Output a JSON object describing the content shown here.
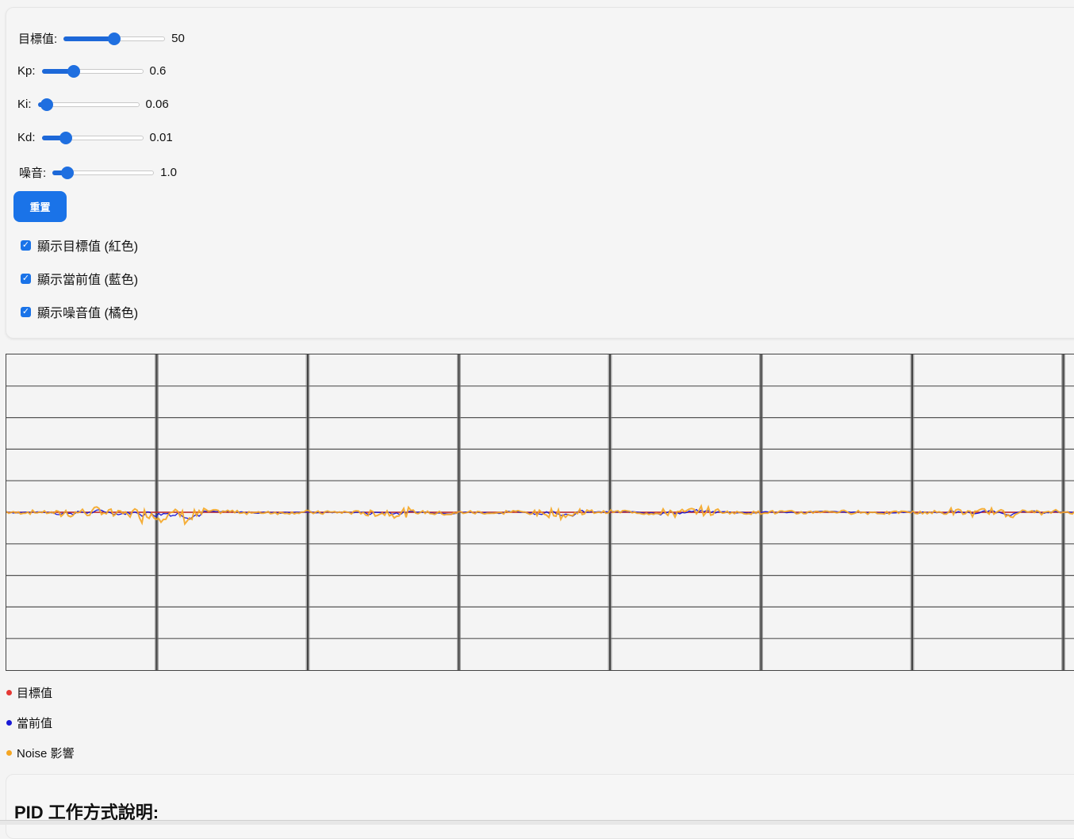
{
  "controls": {
    "target": {
      "label": "目標值:",
      "value": "50",
      "fraction": 0.5
    },
    "kp": {
      "label": "Kp:",
      "value": "0.6",
      "fraction": 0.3
    },
    "ki": {
      "label": "Ki:",
      "value": "0.06",
      "fraction": 0.08
    },
    "kd": {
      "label": "Kd:",
      "value": "0.01",
      "fraction": 0.24
    },
    "noise": {
      "label": "噪音:",
      "value": "1.0",
      "fraction": 0.15
    }
  },
  "reset_label": "重置",
  "checkboxes": [
    {
      "label": "顯示目標值 (紅色)",
      "checked": true
    },
    {
      "label": "顯示當前值 (藍色)",
      "checked": true
    },
    {
      "label": "顯示噪音值 (橘色)",
      "checked": true
    }
  ],
  "legend": [
    {
      "label": "目標值",
      "color": "#e53935"
    },
    {
      "label": "當前值",
      "color": "#1a1ad6"
    },
    {
      "label": "Noise 影響",
      "color": "#f5a623"
    }
  ],
  "colors": {
    "accent": "#1a73e8",
    "target": "#d32f2f",
    "current": "#1a1ad6",
    "noise": "#f5a623"
  },
  "chart_data": {
    "type": "line",
    "target_value": 50,
    "ylim": [
      0,
      100
    ],
    "grid": true,
    "series": [
      {
        "name": "目標值",
        "color": "#d32f2f"
      },
      {
        "name": "當前值",
        "color": "#1a1ad6"
      },
      {
        "name": "Noise 影響",
        "color": "#f5a623"
      }
    ]
  },
  "section_title": "PID 工作方式說明:"
}
